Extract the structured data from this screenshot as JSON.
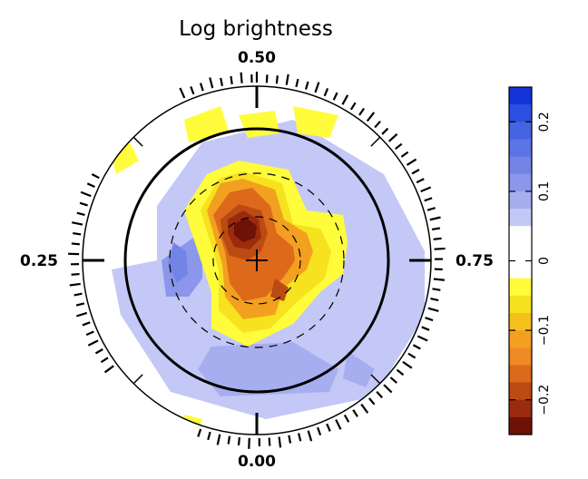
{
  "chart_data": {
    "type": "heatmap",
    "projection": "polar",
    "title": "Log brightness",
    "phase_labels": [
      {
        "text": "0.00",
        "phase": 0.0
      },
      {
        "text": "0.25",
        "phase": 0.25
      },
      {
        "text": "0.50",
        "phase": 0.5
      },
      {
        "text": "0.75",
        "phase": 0.75
      }
    ],
    "colorbar": {
      "range": [
        -0.25,
        0.25
      ],
      "ticks": [
        {
          "value": 0.2,
          "label": "0.2"
        },
        {
          "value": 0.1,
          "label": "0.1"
        },
        {
          "value": 0,
          "label": "0"
        },
        {
          "value": -0.1,
          "label": "−0.1"
        },
        {
          "value": -0.2,
          "label": "−0.2"
        }
      ],
      "levels": [
        {
          "min": 0.225,
          "max": 0.25,
          "color": "#1433d8"
        },
        {
          "min": 0.2,
          "max": 0.225,
          "color": "#2b4fe0"
        },
        {
          "min": 0.175,
          "max": 0.2,
          "color": "#4564e2"
        },
        {
          "min": 0.15,
          "max": 0.175,
          "color": "#5c74e4"
        },
        {
          "min": 0.125,
          "max": 0.15,
          "color": "#7484e6"
        },
        {
          "min": 0.1,
          "max": 0.125,
          "color": "#8c96ea"
        },
        {
          "min": 0.075,
          "max": 0.1,
          "color": "#a6aef0"
        },
        {
          "min": 0.05,
          "max": 0.075,
          "color": "#c4c8f6"
        },
        {
          "min": 0.025,
          "max": 0.05,
          "color": "#ffffff"
        },
        {
          "min": 0.0,
          "max": 0.025,
          "color": "#ffffff"
        },
        {
          "min": -0.025,
          "max": 0.0,
          "color": "#ffffff"
        },
        {
          "min": -0.05,
          "max": -0.025,
          "color": "#fffc3c"
        },
        {
          "min": -0.075,
          "max": -0.05,
          "color": "#f6e21e"
        },
        {
          "min": -0.1,
          "max": -0.075,
          "color": "#f4c01c"
        },
        {
          "min": -0.125,
          "max": -0.1,
          "color": "#f3a021"
        },
        {
          "min": -0.15,
          "max": -0.125,
          "color": "#f08a25"
        },
        {
          "min": -0.175,
          "max": -0.15,
          "color": "#dd6a1a"
        },
        {
          "min": -0.2,
          "max": -0.175,
          "color": "#bb4a13"
        },
        {
          "min": -0.225,
          "max": -0.2,
          "color": "#9a2c0d"
        },
        {
          "min": -0.25,
          "max": -0.225,
          "color": "#6e1106"
        }
      ]
    },
    "regions": [
      {
        "value": 0.07,
        "polygon": [
          [
            -110,
            0
          ],
          [
            -110,
            -60
          ],
          [
            -60,
            -130
          ],
          [
            40,
            -155
          ],
          [
            140,
            -95
          ],
          [
            185,
            -10
          ],
          [
            185,
            60
          ],
          [
            130,
            150
          ],
          [
            10,
            175
          ],
          [
            -95,
            145
          ],
          [
            -150,
            60
          ],
          [
            -160,
            10
          ]
        ]
      },
      {
        "value": 0.0,
        "polygon": [
          [
            150,
            -165
          ],
          [
            175,
            -120
          ],
          [
            145,
            -95
          ],
          [
            110,
            -120
          ],
          [
            120,
            -150
          ]
        ]
      },
      {
        "value": 0.0,
        "polygon": [
          [
            -180,
            100
          ],
          [
            -150,
            120
          ],
          [
            -155,
            140
          ],
          [
            -185,
            130
          ]
        ]
      },
      {
        "value": 0.1,
        "polygon": [
          [
            -70,
            -25
          ],
          [
            -60,
            -5
          ],
          [
            -60,
            20
          ],
          [
            -75,
            40
          ],
          [
            -100,
            40
          ],
          [
            -105,
            0
          ]
        ]
      },
      {
        "value": 0.14,
        "polygon": [
          [
            -92,
            -20
          ],
          [
            -78,
            -10
          ],
          [
            -76,
            15
          ],
          [
            -88,
            25
          ],
          [
            -98,
            5
          ]
        ]
      },
      {
        "value": 0.09,
        "polygon": [
          [
            -50,
            95
          ],
          [
            40,
            90
          ],
          [
            90,
            120
          ],
          [
            80,
            145
          ],
          [
            -40,
            150
          ],
          [
            -65,
            120
          ]
        ]
      },
      {
        "value": 0.09,
        "polygon": [
          [
            100,
            100
          ],
          [
            130,
            120
          ],
          [
            120,
            140
          ],
          [
            95,
            130
          ]
        ]
      },
      {
        "value": -0.04,
        "polygon": [
          [
            -80,
            -155
          ],
          [
            -40,
            -170
          ],
          [
            -30,
            -140
          ],
          [
            -75,
            -130
          ]
        ]
      },
      {
        "value": -0.04,
        "polygon": [
          [
            -20,
            -160
          ],
          [
            20,
            -165
          ],
          [
            25,
            -140
          ],
          [
            -10,
            -135
          ]
        ]
      },
      {
        "value": -0.04,
        "polygon": [
          [
            40,
            -170
          ],
          [
            90,
            -160
          ],
          [
            80,
            -135
          ],
          [
            45,
            -140
          ]
        ]
      },
      {
        "value": -0.04,
        "polygon": [
          [
            -160,
            -115
          ],
          [
            -140,
            -130
          ],
          [
            -130,
            -110
          ],
          [
            -155,
            -95
          ]
        ]
      },
      {
        "value": -0.04,
        "polygon": [
          [
            155,
            110
          ],
          [
            175,
            115
          ],
          [
            170,
            140
          ],
          [
            150,
            130
          ]
        ]
      },
      {
        "value": -0.04,
        "polygon": [
          [
            -80,
            170
          ],
          [
            -60,
            175
          ],
          [
            -65,
            190
          ],
          [
            -85,
            185
          ]
        ]
      },
      {
        "value": -0.04,
        "polygon": [
          [
            -80,
            -55
          ],
          [
            -55,
            -95
          ],
          [
            -20,
            -110
          ],
          [
            35,
            -100
          ],
          [
            55,
            -55
          ],
          [
            95,
            -50
          ],
          [
            100,
            -20
          ],
          [
            95,
            15
          ],
          [
            70,
            35
          ],
          [
            40,
            70
          ],
          [
            -10,
            95
          ],
          [
            -50,
            75
          ],
          [
            -50,
            35
          ],
          [
            -60,
            5
          ]
        ]
      },
      {
        "value": -0.06,
        "polygon": [
          [
            -62,
            -55
          ],
          [
            -42,
            -90
          ],
          [
            -15,
            -98
          ],
          [
            28,
            -85
          ],
          [
            40,
            -40
          ],
          [
            70,
            -35
          ],
          [
            82,
            -10
          ],
          [
            75,
            20
          ],
          [
            45,
            45
          ],
          [
            15,
            75
          ],
          [
            -15,
            80
          ],
          [
            -42,
            55
          ],
          [
            -42,
            10
          ]
        ]
      },
      {
        "value": -0.11,
        "polygon": [
          [
            -55,
            -55
          ],
          [
            -40,
            -85
          ],
          [
            -15,
            -90
          ],
          [
            20,
            -78
          ],
          [
            30,
            -45
          ],
          [
            55,
            -30
          ],
          [
            62,
            -10
          ],
          [
            55,
            10
          ],
          [
            30,
            30
          ],
          [
            20,
            60
          ],
          [
            -15,
            65
          ],
          [
            -35,
            40
          ],
          [
            -38,
            5
          ]
        ]
      },
      {
        "value": -0.16,
        "polygon": [
          [
            -48,
            -50
          ],
          [
            -30,
            -75
          ],
          [
            -5,
            -80
          ],
          [
            15,
            -60
          ],
          [
            22,
            -30
          ],
          [
            40,
            -15
          ],
          [
            42,
            0
          ],
          [
            30,
            18
          ],
          [
            10,
            40
          ],
          [
            -15,
            45
          ],
          [
            -30,
            25
          ],
          [
            -35,
            -10
          ]
        ]
      },
      {
        "value": -0.19,
        "polygon": [
          [
            -40,
            -45
          ],
          [
            -20,
            -62
          ],
          [
            5,
            -55
          ],
          [
            12,
            -30
          ],
          [
            5,
            -10
          ],
          [
            -10,
            0
          ],
          [
            -30,
            -5
          ],
          [
            -38,
            -25
          ]
        ]
      },
      {
        "value": -0.21,
        "polygon": [
          [
            -32,
            -45
          ],
          [
            -15,
            -55
          ],
          [
            2,
            -45
          ],
          [
            5,
            -25
          ],
          [
            -8,
            -12
          ],
          [
            -25,
            -15
          ],
          [
            -32,
            -30
          ]
        ]
      },
      {
        "value": -0.24,
        "polygon": [
          [
            -25,
            -40
          ],
          [
            -12,
            -47
          ],
          [
            0,
            -38
          ],
          [
            -2,
            -25
          ],
          [
            -15,
            -20
          ],
          [
            -25,
            -28
          ]
        ]
      },
      {
        "value": -0.19,
        "polygon": [
          [
            20,
            20
          ],
          [
            35,
            30
          ],
          [
            30,
            45
          ],
          [
            15,
            40
          ]
        ]
      }
    ]
  }
}
